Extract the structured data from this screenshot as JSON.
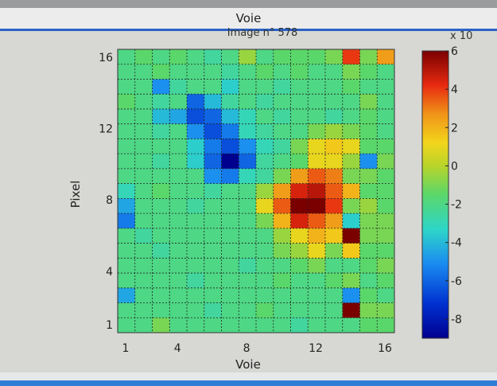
{
  "window": {
    "title": "Voie"
  },
  "chart_data": {
    "type": "heatmap",
    "title": "Image n° 578",
    "xlabel": "Voie",
    "ylabel": "Pixel",
    "x_ticks": [
      "1",
      "4",
      "8",
      "12",
      "16"
    ],
    "y_ticks": [
      "1",
      "4",
      "8",
      "12",
      "16"
    ],
    "xlim": [
      1,
      16
    ],
    "ylim": [
      1,
      16
    ],
    "grid": true,
    "colorbar": {
      "exponent_label": "x 10",
      "range": [
        -9,
        6
      ],
      "ticks": [
        "6",
        "4",
        "2",
        "0",
        "-2",
        "-4",
        "-6",
        "-8"
      ]
    },
    "rows_top_to_bottom": [
      [
        -2,
        -1.5,
        -2,
        -1.5,
        -2,
        -2.5,
        -2,
        -0.5,
        -2,
        -1.5,
        -1.5,
        -1.5,
        -1,
        4,
        -1,
        2.5
      ],
      [
        -2,
        -2,
        -1.5,
        -2,
        -2,
        -2,
        -2.5,
        -2,
        -1.5,
        -2,
        -1.5,
        -2,
        -2,
        -1,
        -1.5,
        -2
      ],
      [
        -2,
        -2,
        -5,
        -2.5,
        -2,
        -2,
        -3.5,
        -2,
        -2,
        -2.5,
        -2,
        -2,
        -2,
        -1.5,
        -2,
        -2
      ],
      [
        -1.5,
        -2,
        -2.5,
        -2,
        -6,
        -4,
        -2.5,
        -2,
        -2.5,
        -2,
        -2,
        -2,
        -2,
        -2,
        -1,
        -2
      ],
      [
        -2,
        -2,
        -4,
        -4.5,
        -6.5,
        -6,
        -4,
        -3,
        -2,
        -2.5,
        -2,
        -2,
        -2.5,
        -2,
        -1.5,
        -2
      ],
      [
        -2,
        -2,
        -2.5,
        -2,
        -5,
        -6.5,
        -5.5,
        -3,
        -2.5,
        -2,
        -2,
        -1,
        -0.5,
        -1,
        -1.5,
        -2
      ],
      [
        -2,
        -2,
        -2,
        -2,
        -3.5,
        -5.5,
        -6.5,
        -5,
        -3,
        -2.5,
        -1,
        1,
        1.5,
        1,
        -1.5,
        -1.5
      ],
      [
        -2,
        -2,
        -2.5,
        -2,
        -3.5,
        -6,
        -9,
        -6,
        -2.5,
        -2,
        -1.5,
        1,
        1,
        -0.5,
        -5,
        -1
      ],
      [
        -2,
        -2,
        -2,
        -2,
        -2,
        -5,
        -5.5,
        -3,
        -2.5,
        -1,
        2.5,
        3.5,
        3,
        -1,
        -1,
        -1.5
      ],
      [
        -3,
        -2,
        -1.5,
        -2,
        -2,
        -2.5,
        -2,
        -2,
        -0.5,
        2.5,
        4.5,
        5,
        3.5,
        2,
        -1.5,
        -1.5
      ],
      [
        -4.5,
        -2,
        -2,
        -2,
        -2.5,
        -2,
        -2,
        -2,
        1,
        3.5,
        6,
        6.5,
        4,
        -1,
        -0.5,
        -1.5
      ],
      [
        -5.5,
        -2,
        -2,
        -2,
        -2,
        -2,
        -2,
        -2,
        -1,
        2,
        4.5,
        3.5,
        2.5,
        -3.5,
        -1,
        -1
      ],
      [
        -2,
        -2.5,
        -2,
        -2,
        -2,
        -2,
        -2,
        -2,
        -2,
        -0.5,
        1,
        2,
        1.5,
        6,
        -1,
        -1
      ],
      [
        -2,
        -2,
        -2.5,
        -2,
        -2,
        -2,
        -2,
        -2,
        -2,
        -1,
        -0.5,
        1,
        -1,
        1.5,
        -1.5,
        -1.5
      ],
      [
        -2,
        -2,
        -2,
        -2,
        -2,
        -2,
        -2,
        -2.5,
        -2,
        -2,
        -1.5,
        -1,
        -2,
        -2,
        -1.5,
        -1
      ],
      [
        -2,
        -2,
        -2,
        -2,
        -2.5,
        -2,
        -2,
        -2,
        -2,
        -1.5,
        -2,
        -2,
        -1.5,
        -1,
        -2,
        -1.5
      ],
      [
        -4.5,
        -2,
        -2,
        -2,
        -2,
        -2,
        -2,
        -2,
        -2,
        -2,
        -2,
        -2,
        -2,
        -5,
        -1.5,
        -2
      ],
      [
        -2,
        -2,
        -2,
        -2,
        -2,
        -2.5,
        -2,
        -2,
        -1.5,
        -2,
        -2,
        -2,
        -2,
        6,
        -1,
        -1
      ],
      [
        -2,
        -2,
        -1,
        -2,
        -2,
        -2,
        -2,
        -2,
        -2,
        -2,
        -2.5,
        -2,
        -2,
        -2,
        -1.5,
        -1.5
      ]
    ]
  }
}
